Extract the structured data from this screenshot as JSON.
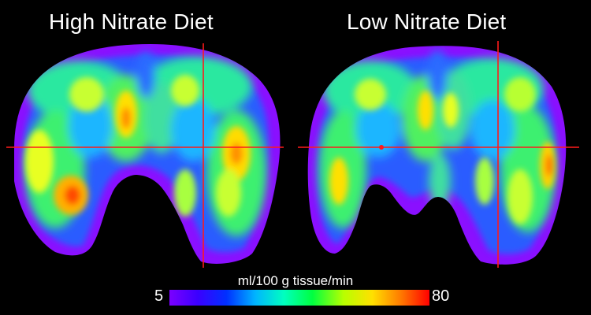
{
  "titles": {
    "left": "High Nitrate Diet",
    "right": "Low Nitrate Diet"
  },
  "colorbar": {
    "label": "ml/100 g tissue/min",
    "min": "5",
    "max": "80",
    "stops": [
      "#7b00ff",
      "#3a00ff",
      "#0030ff",
      "#00b4ff",
      "#00ffc0",
      "#00ff40",
      "#b8ff00",
      "#ffe000",
      "#ff7a00",
      "#ff0000"
    ]
  },
  "colors": {
    "crosshair": "#ff1a1a",
    "background": "#000000"
  }
}
